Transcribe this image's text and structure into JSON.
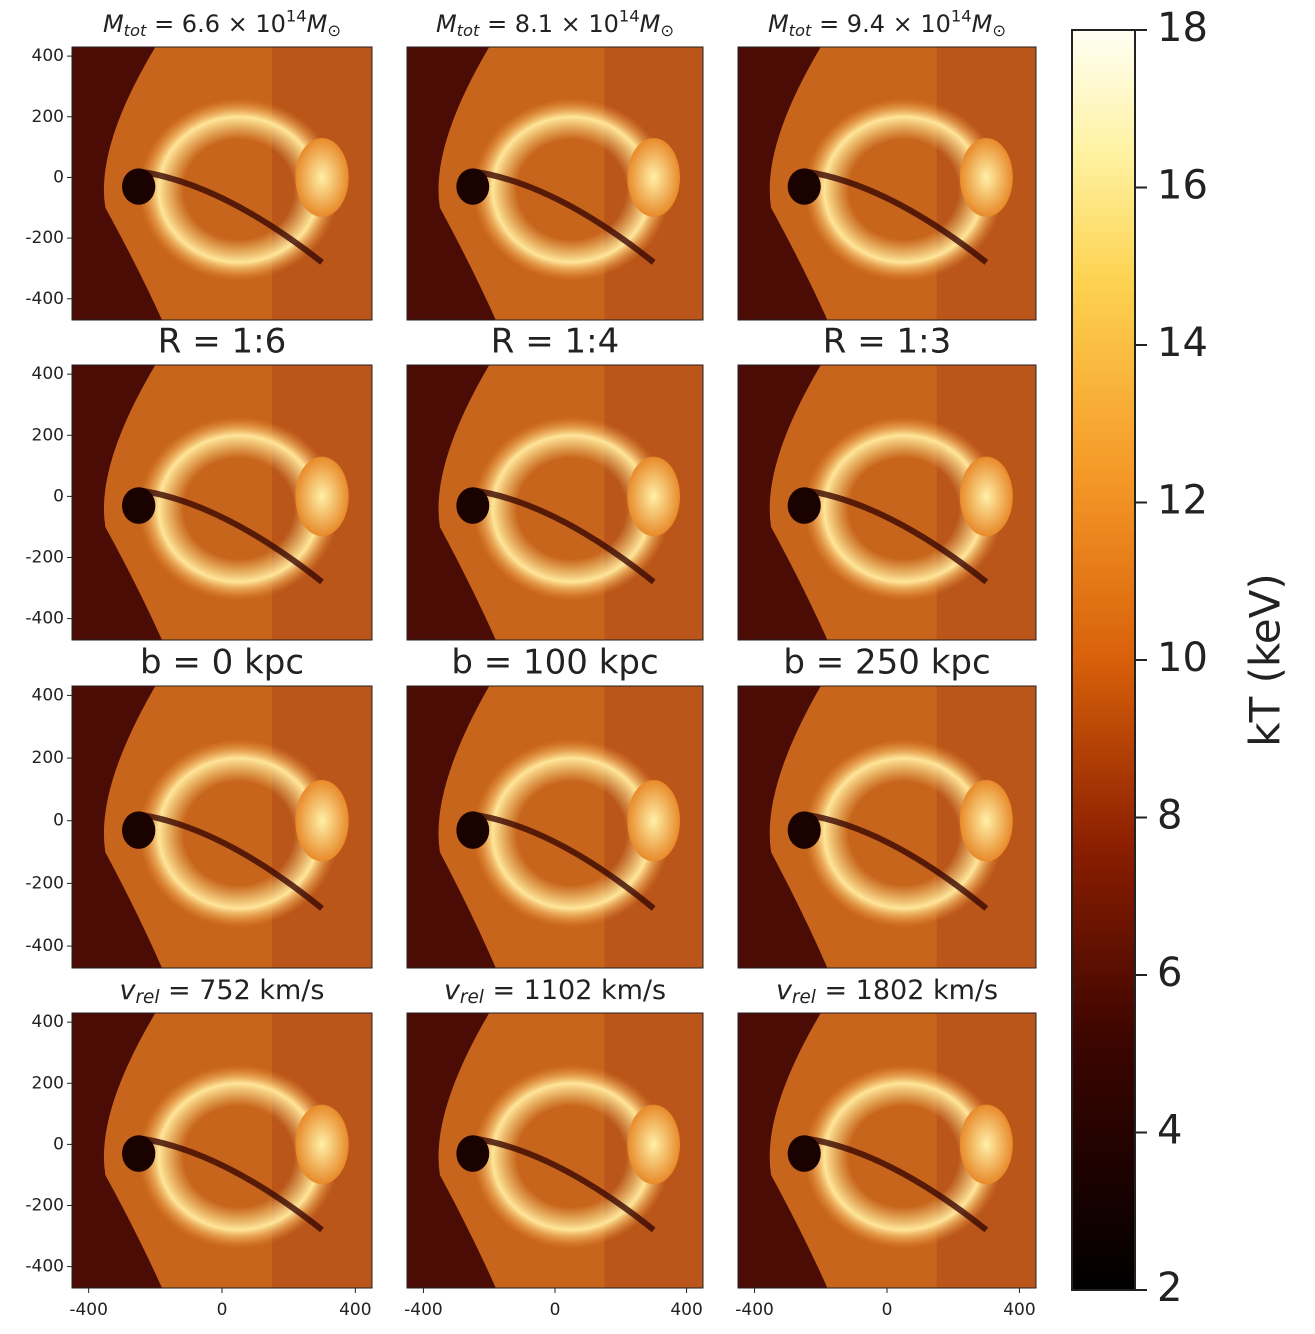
{
  "chart_data": [
    {
      "type": "image",
      "title": {
        "symbol": "M",
        "subscript": "tot",
        "text": " = 6.6 × 10",
        "superscript": "14",
        "unit": "M",
        "unit_subscript": "⊙"
      },
      "xlim": [
        -450,
        450
      ],
      "ylim": [
        -470,
        430
      ],
      "yticks": [
        -400,
        -200,
        0,
        200,
        400
      ]
    },
    {
      "type": "image",
      "title": {
        "symbol": "M",
        "subscript": "tot",
        "text": " = 8.1 × 10",
        "superscript": "14",
        "unit": "M",
        "unit_subscript": "⊙"
      },
      "xlim": [
        -450,
        450
      ],
      "ylim": [
        -470,
        430
      ]
    },
    {
      "type": "image",
      "title": {
        "symbol": "M",
        "subscript": "tot",
        "text": " = 9.4 × 10",
        "superscript": "14",
        "unit": "M",
        "unit_subscript": "⊙"
      },
      "xlim": [
        -450,
        450
      ],
      "ylim": [
        -470,
        430
      ]
    },
    {
      "type": "image",
      "title": "R = 1:6",
      "xlim": [
        -450,
        450
      ],
      "ylim": [
        -470,
        430
      ],
      "yticks": [
        -400,
        -200,
        0,
        200,
        400
      ]
    },
    {
      "type": "image",
      "title": "R = 1:4",
      "xlim": [
        -450,
        450
      ],
      "ylim": [
        -470,
        430
      ]
    },
    {
      "type": "image",
      "title": "R = 1:3",
      "xlim": [
        -450,
        450
      ],
      "ylim": [
        -470,
        430
      ]
    },
    {
      "type": "image",
      "title": "b = 0 kpc",
      "xlim": [
        -450,
        450
      ],
      "ylim": [
        -470,
        430
      ],
      "yticks": [
        -400,
        -200,
        0,
        200,
        400
      ]
    },
    {
      "type": "image",
      "title": "b = 100 kpc",
      "xlim": [
        -450,
        450
      ],
      "ylim": [
        -470,
        430
      ]
    },
    {
      "type": "image",
      "title": "b = 250 kpc",
      "xlim": [
        -450,
        450
      ],
      "ylim": [
        -470,
        430
      ]
    },
    {
      "type": "image",
      "title": {
        "symbol": "v",
        "subscript": "rel",
        "text": " = 752 km/s"
      },
      "xlim": [
        -450,
        450
      ],
      "ylim": [
        -470,
        430
      ],
      "yticks": [
        -400,
        -200,
        0,
        200,
        400
      ],
      "xticks": [
        -400,
        0,
        400
      ]
    },
    {
      "type": "image",
      "title": {
        "symbol": "v",
        "subscript": "rel",
        "text": " = 1102 km/s"
      },
      "xlim": [
        -450,
        450
      ],
      "ylim": [
        -470,
        430
      ],
      "xticks": [
        -400,
        0,
        400
      ]
    },
    {
      "type": "image",
      "title": {
        "symbol": "v",
        "subscript": "rel",
        "text": " = 1802 km/s"
      },
      "xlim": [
        -450,
        450
      ],
      "ylim": [
        -470,
        430
      ],
      "xticks": [
        -400,
        0,
        400
      ]
    },
    {
      "type": "colorbar",
      "label": "kT (keV)",
      "ylim": [
        2,
        18
      ],
      "yticks": [
        2,
        4,
        6,
        8,
        10,
        12,
        14,
        16,
        18
      ]
    }
  ]
}
